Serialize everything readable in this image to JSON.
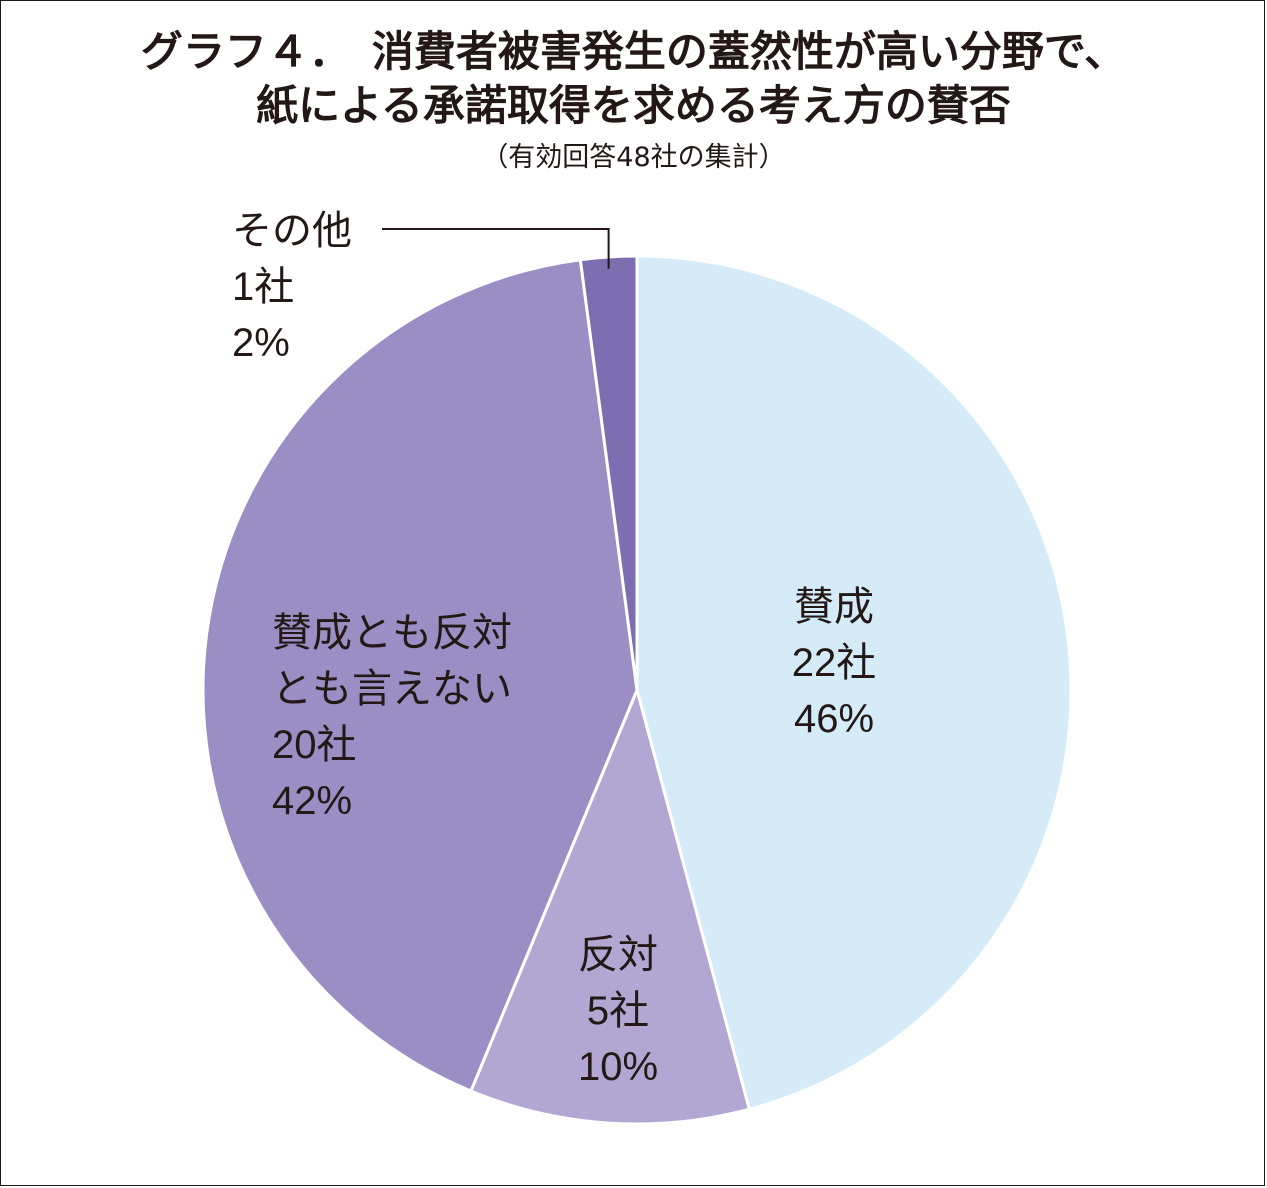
{
  "title_line1": "グラフ４．　消費者被害発生の蓋然性が高い分野で、",
  "title_line2": "紙による承諾取得を求める考え方の賛否",
  "subtitle": "（有効回答48社の集計）",
  "chart_data": {
    "type": "pie",
    "title": "グラフ４．　消費者被害発生の蓋然性が高い分野で、紙による承諾取得を求める考え方の賛否",
    "subtitle": "（有効回答48社の集計）",
    "unit": "社",
    "start_angle_deg": 0,
    "direction": "clockwise",
    "slices": [
      {
        "lines": [
          "賛成",
          "22社",
          "46%"
        ],
        "value": 22,
        "percent": 46,
        "color": "#d5ecf8"
      },
      {
        "lines": [
          "反対",
          "5社",
          "10%"
        ],
        "value": 5,
        "percent": 10,
        "color": "#b2a7d2"
      },
      {
        "lines": [
          "賛成とも反対",
          "とも言えない",
          "20社",
          "42%"
        ],
        "value": 20,
        "percent": 42,
        "color": "#9a8ec4"
      },
      {
        "lines": [
          "その他",
          "1社",
          "2%"
        ],
        "value": 1,
        "percent": 2,
        "color": "#7c6eb0",
        "callout": true
      }
    ]
  }
}
